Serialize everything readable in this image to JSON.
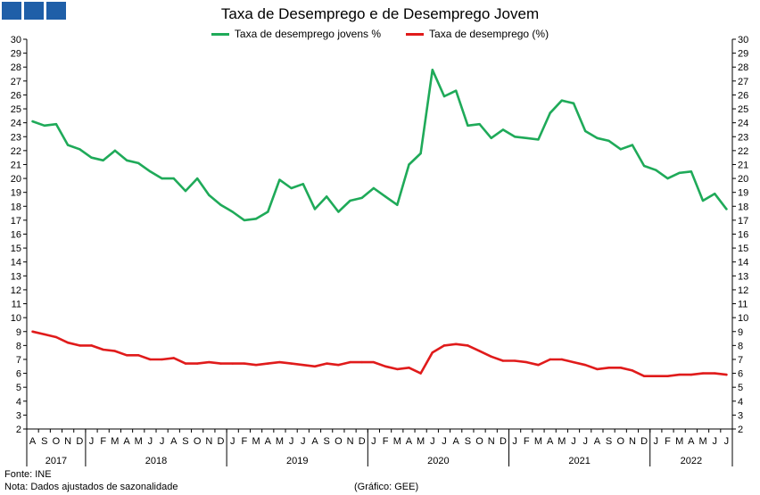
{
  "logo": {
    "blocks": 3,
    "color": "#1f5fa8"
  },
  "header": {
    "title": "Taxa de Desemprego e de Desemprego Jovem"
  },
  "footer": {
    "source": "Fonte: INE",
    "note": "Nota: Dados ajustados de sazonalidade",
    "credit": "(Gráfico: GEE)"
  },
  "chart_data": {
    "type": "line",
    "title": "Taxa de Desemprego e de Desemprego Jovem",
    "ylim": [
      2,
      30
    ],
    "y_ticks": [
      2,
      3,
      4,
      5,
      6,
      7,
      8,
      9,
      10,
      11,
      12,
      13,
      14,
      15,
      16,
      17,
      18,
      19,
      20,
      21,
      22,
      23,
      24,
      25,
      26,
      27,
      28,
      29,
      30
    ],
    "grid": false,
    "legend": "top-center",
    "x": [
      "2017-08",
      "2017-09",
      "2017-10",
      "2017-11",
      "2017-12",
      "2018-01",
      "2018-02",
      "2018-03",
      "2018-04",
      "2018-05",
      "2018-06",
      "2018-07",
      "2018-08",
      "2018-09",
      "2018-10",
      "2018-11",
      "2018-12",
      "2019-01",
      "2019-02",
      "2019-03",
      "2019-04",
      "2019-05",
      "2019-06",
      "2019-07",
      "2019-08",
      "2019-09",
      "2019-10",
      "2019-11",
      "2019-12",
      "2020-01",
      "2020-02",
      "2020-03",
      "2020-04",
      "2020-05",
      "2020-06",
      "2020-07",
      "2020-08",
      "2020-09",
      "2020-10",
      "2020-11",
      "2020-12",
      "2021-01",
      "2021-02",
      "2021-03",
      "2021-04",
      "2021-05",
      "2021-06",
      "2021-07",
      "2021-08",
      "2021-09",
      "2021-10",
      "2021-11",
      "2021-12",
      "2022-01",
      "2022-02",
      "2022-03",
      "2022-04",
      "2022-05",
      "2022-06",
      "2022-07"
    ],
    "month_labels": [
      "A",
      "S",
      "O",
      "N",
      "D",
      "J",
      "F",
      "M",
      "A",
      "M",
      "J",
      "J",
      "A",
      "S",
      "O",
      "N",
      "D",
      "J",
      "F",
      "M",
      "A",
      "M",
      "J",
      "J",
      "A",
      "S",
      "O",
      "N",
      "D",
      "J",
      "F",
      "M",
      "A",
      "M",
      "J",
      "J",
      "A",
      "S",
      "O",
      "N",
      "D",
      "J",
      "F",
      "M",
      "A",
      "M",
      "J",
      "J",
      "A",
      "S",
      "O",
      "N",
      "D",
      "J",
      "F",
      "M",
      "A",
      "M",
      "J",
      "J"
    ],
    "years": [
      {
        "label": "2017",
        "start": 0,
        "end": 4
      },
      {
        "label": "2018",
        "start": 5,
        "end": 16
      },
      {
        "label": "2019",
        "start": 17,
        "end": 28
      },
      {
        "label": "2020",
        "start": 29,
        "end": 40
      },
      {
        "label": "2021",
        "start": 41,
        "end": 52
      },
      {
        "label": "2022",
        "start": 53,
        "end": 59
      }
    ],
    "series": [
      {
        "name": "Taxa de desemprego jovens %",
        "color": "#1faa59",
        "values": [
          24.1,
          23.8,
          23.9,
          22.4,
          22.1,
          21.5,
          21.3,
          22.0,
          21.3,
          21.1,
          20.5,
          20.0,
          20.0,
          19.1,
          20.0,
          18.8,
          18.1,
          17.6,
          17.0,
          17.1,
          17.6,
          19.9,
          19.3,
          19.6,
          17.8,
          18.7,
          17.6,
          18.4,
          18.6,
          19.3,
          18.7,
          18.1,
          21.0,
          21.8,
          27.8,
          25.9,
          26.3,
          23.8,
          23.9,
          22.9,
          23.5,
          23.0,
          22.9,
          22.8,
          24.7,
          25.6,
          25.4,
          23.4,
          22.9,
          22.7,
          22.1,
          22.4,
          20.9,
          20.6,
          20.0,
          20.4,
          20.5,
          18.4,
          18.9,
          17.8
        ]
      },
      {
        "name": "Taxa de desemprego (%)",
        "color": "#e01b1b",
        "values": [
          9.0,
          8.8,
          8.6,
          8.2,
          8.0,
          8.0,
          7.7,
          7.6,
          7.3,
          7.3,
          7.0,
          7.0,
          7.1,
          6.7,
          6.7,
          6.8,
          6.7,
          6.7,
          6.7,
          6.6,
          6.7,
          6.8,
          6.7,
          6.6,
          6.5,
          6.7,
          6.6,
          6.8,
          6.8,
          6.8,
          6.5,
          6.3,
          6.4,
          6.0,
          7.5,
          8.0,
          8.1,
          8.0,
          7.6,
          7.2,
          6.9,
          6.9,
          6.8,
          6.6,
          7.0,
          7.0,
          6.8,
          6.6,
          6.3,
          6.4,
          6.4,
          6.2,
          5.8,
          5.8,
          5.8,
          5.9,
          5.9,
          6.0,
          6.0,
          5.9
        ]
      }
    ]
  }
}
